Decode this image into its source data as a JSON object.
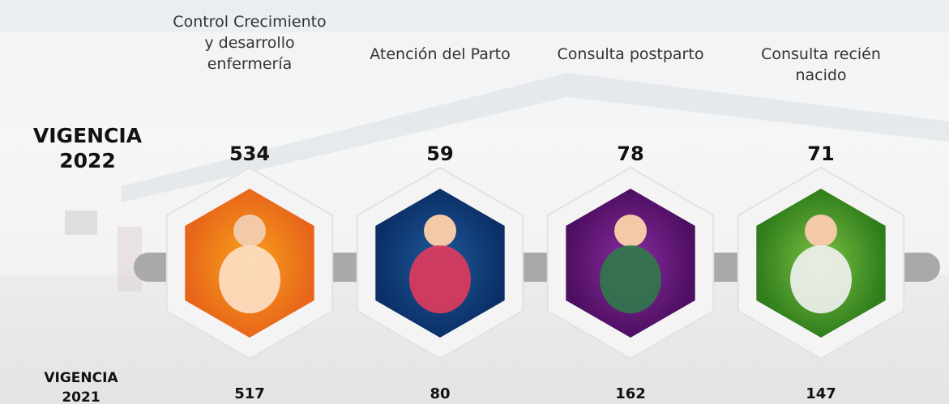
{
  "columns": [
    "Control Crecimiento y desarrollo enfermería",
    "Atención del Parto",
    "Consulta postparto",
    "Consulta recién nacido"
  ],
  "rows": [
    {
      "label": "VIGENCIA 2022",
      "values": [
        534,
        59,
        78,
        71
      ]
    },
    {
      "label": "VIGENCIA 2021",
      "values": [
        517,
        80,
        162,
        147
      ]
    }
  ]
}
